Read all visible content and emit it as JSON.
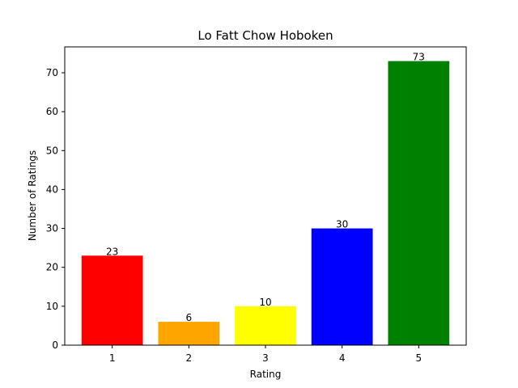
{
  "chart_data": {
    "type": "bar",
    "title": "Lo Fatt Chow Hoboken",
    "xlabel": "Rating",
    "ylabel": "Number of Ratings",
    "categories": [
      "1",
      "2",
      "3",
      "4",
      "5"
    ],
    "values": [
      23,
      6,
      10,
      30,
      73
    ],
    "data_labels": [
      "23",
      "6",
      "10",
      "30",
      "73"
    ],
    "colors": [
      "#ff0000",
      "#ffa500",
      "#ffff00",
      "#0000ff",
      "#008000"
    ],
    "ylim": [
      0,
      76.65
    ],
    "yticks": [
      0,
      10,
      20,
      30,
      40,
      50,
      60,
      70
    ],
    "grid": false,
    "legend": false
  }
}
